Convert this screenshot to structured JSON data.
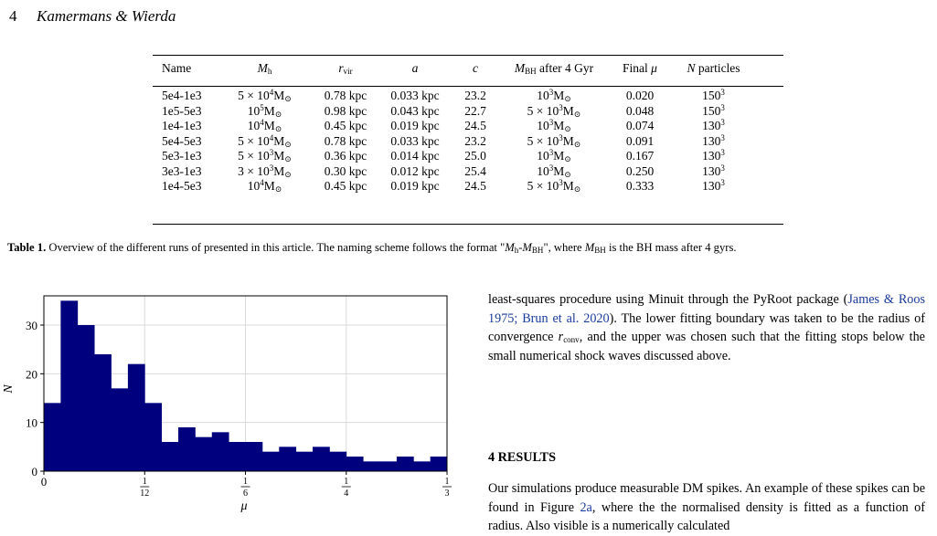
{
  "header": {
    "page_number": "4",
    "authors": "Kamermans & Wierda"
  },
  "table": {
    "headers": [
      "Name",
      "M_h",
      "r_vir",
      "a",
      "c",
      "M_BH after 4 Gyr",
      "Final μ",
      "N particles"
    ],
    "rows": [
      {
        "name": "5e4-1e3",
        "mh_coef": "5 ×",
        "mh_exp": "4",
        "rvir": "0.78 kpc",
        "a": "0.033 kpc",
        "c": "23.2",
        "mbh_coef": "",
        "mbh_exp": "3",
        "mu": "0.020",
        "n_base": "150",
        "n_exp": "3"
      },
      {
        "name": "1e5-5e3",
        "mh_coef": "",
        "mh_exp": "5",
        "rvir": "0.98 kpc",
        "a": "0.043 kpc",
        "c": "22.7",
        "mbh_coef": "5 ×",
        "mbh_exp": "3",
        "mu": "0.048",
        "n_base": "150",
        "n_exp": "3"
      },
      {
        "name": "1e4-1e3",
        "mh_coef": "",
        "mh_exp": "4",
        "rvir": "0.45 kpc",
        "a": "0.019 kpc",
        "c": "24.5",
        "mbh_coef": "",
        "mbh_exp": "3",
        "mu": "0.074",
        "n_base": "130",
        "n_exp": "3"
      },
      {
        "name": "5e4-5e3",
        "mh_coef": "5 ×",
        "mh_exp": "4",
        "rvir": "0.78 kpc",
        "a": "0.033 kpc",
        "c": "23.2",
        "mbh_coef": "5 ×",
        "mbh_exp": "3",
        "mu": "0.091",
        "n_base": "130",
        "n_exp": "3"
      },
      {
        "name": "5e3-1e3",
        "mh_coef": "5 ×",
        "mh_exp": "3",
        "rvir": "0.36 kpc",
        "a": "0.014 kpc",
        "c": "25.0",
        "mbh_coef": "",
        "mbh_exp": "3",
        "mu": "0.167",
        "n_base": "130",
        "n_exp": "3"
      },
      {
        "name": "3e3-1e3",
        "mh_coef": "3 ×",
        "mh_exp": "3",
        "rvir": "0.30 kpc",
        "a": "0.012 kpc",
        "c": "25.4",
        "mbh_coef": "",
        "mbh_exp": "3",
        "mu": "0.250",
        "n_base": "130",
        "n_exp": "3"
      },
      {
        "name": "1e4-5e3",
        "mh_coef": "",
        "mh_exp": "4",
        "rvir": "0.45 kpc",
        "a": "0.019 kpc",
        "c": "24.5",
        "mbh_coef": "5 ×",
        "mbh_exp": "3",
        "mu": "0.333",
        "n_base": "130",
        "n_exp": "3"
      }
    ]
  },
  "caption": {
    "label": "Table 1.",
    "text_a": " Overview of the different runs of presented in this article. The naming scheme follows the format \"",
    "text_b": "\", where ",
    "text_c": " is the BH mass after 4 gyrs."
  },
  "chart_data": {
    "type": "bar",
    "xlabel": "μ",
    "ylabel": "N",
    "xlim": [
      0,
      0.3333
    ],
    "ylim": [
      0,
      36
    ],
    "xticks": [
      {
        "value": 0,
        "label": "0"
      },
      {
        "value": 0.08333,
        "label": "1/12"
      },
      {
        "value": 0.16667,
        "label": "1/6"
      },
      {
        "value": 0.25,
        "label": "1/4"
      },
      {
        "value": 0.33333,
        "label": "1/3"
      }
    ],
    "yticks": [
      0,
      10,
      20,
      30
    ],
    "grid": true,
    "bar_color": "#00007f",
    "bin_width": 0.013889,
    "values": [
      14,
      35,
      30,
      24,
      17,
      22,
      14,
      6,
      9,
      7,
      8,
      6,
      6,
      4,
      5,
      4,
      5,
      4,
      3,
      2,
      2,
      3,
      2,
      3
    ]
  },
  "right_col": {
    "p1_a": "least-squares procedure using Minuit through the PyRoot package (",
    "p1_cite": "James & Roos 1975; Brun et al. 2020",
    "p1_b": "). The lower fitting boundary was taken to be the radius of convergence ",
    "p1_c": ", and the upper was chosen such that the fitting stops below the small numerical shock waves discussed above.",
    "section": "4 RESULTS",
    "p2_a": "Our simulations produce measurable DM spikes. An example of these spikes can be found in Figure ",
    "p2_ref": "2a",
    "p2_b": ", where the the normalised density is fitted as a function of radius. Also visible is a numerically calculated"
  }
}
